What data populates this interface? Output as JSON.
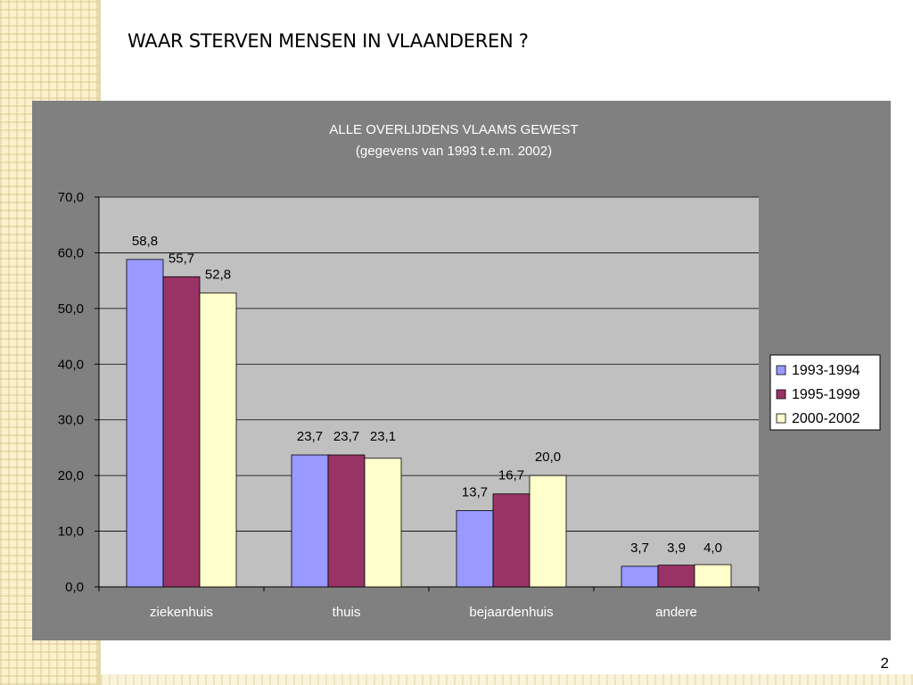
{
  "slide": {
    "title": "WAAR STERVEN MENSEN IN VLAANDEREN ?",
    "page_number": "2"
  },
  "chart_data": {
    "type": "bar",
    "title": "ALLE OVERLIJDENS VLAAMS GEWEST",
    "subtitle": "(gegevens van 1993 t.e.m. 2002)",
    "categories": [
      "ziekenhuis",
      "thuis",
      "bejaardenhuis",
      "andere"
    ],
    "series": [
      {
        "name": "1993-1994",
        "values": [
          58.8,
          23.7,
          13.7,
          3.7
        ],
        "labels": [
          "58,8",
          "23,7",
          "13,7",
          "3,7"
        ],
        "color": "#9999ff"
      },
      {
        "name": "1995-1999",
        "values": [
          55.7,
          23.7,
          16.7,
          3.9
        ],
        "labels": [
          "55,7",
          "23,7",
          "16,7",
          "3,9"
        ],
        "color": "#993366"
      },
      {
        "name": "2000-2002",
        "values": [
          52.8,
          23.1,
          20.0,
          4.0
        ],
        "labels": [
          "52,8",
          "23,1",
          "20,0",
          "4,0"
        ],
        "color": "#ffffcc"
      }
    ],
    "ylim": [
      0,
      70
    ],
    "ytick_labels": [
      "0,0",
      "10,0",
      "20,0",
      "30,0",
      "40,0",
      "50,0",
      "60,0",
      "70,0"
    ],
    "grid": true,
    "legend": "right",
    "colors": {
      "frame_background": "#808080",
      "plot_background": "#c0c0c0",
      "gridline": "#000000"
    }
  }
}
